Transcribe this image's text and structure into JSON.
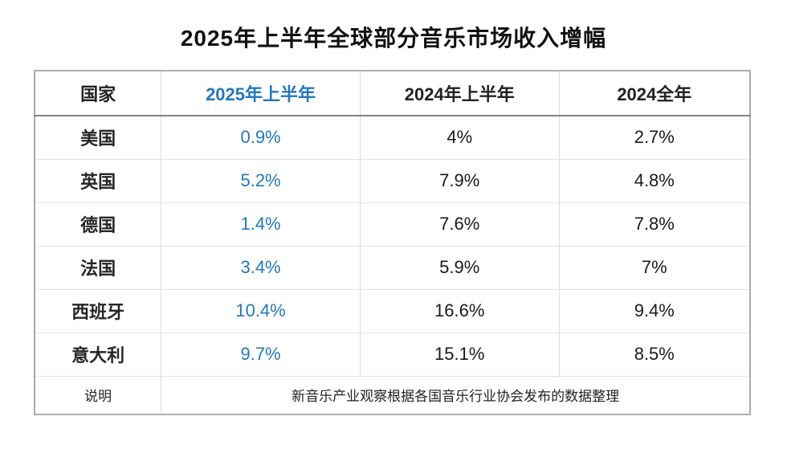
{
  "title": "2025年上半年全球部分音乐市场收入增幅",
  "table": {
    "header": {
      "country": "国家",
      "h1_2025": "2025年上半年",
      "h1_2024": "2024年上半年",
      "full_2024": "2024全年"
    },
    "rows": [
      {
        "country": "美国",
        "h1_2025": "0.9%",
        "h1_2024": "4%",
        "full_2024": "2.7%"
      },
      {
        "country": "英国",
        "h1_2025": "5.2%",
        "h1_2024": "7.9%",
        "full_2024": "4.8%"
      },
      {
        "country": "德国",
        "h1_2025": "1.4%",
        "h1_2024": "7.6%",
        "full_2024": "7.8%"
      },
      {
        "country": "法国",
        "h1_2025": "3.4%",
        "h1_2024": "5.9%",
        "full_2024": "7%"
      },
      {
        "country": "西班牙",
        "h1_2025": "10.4%",
        "h1_2024": "16.6%",
        "full_2024": "9.4%"
      },
      {
        "country": "意大利",
        "h1_2025": "9.7%",
        "h1_2024": "15.1%",
        "full_2024": "8.5%"
      }
    ],
    "footer": {
      "label": "说明",
      "note": "新音乐产业观察根据各国音乐行业协会发布的数据整理"
    }
  },
  "colors": {
    "accent_blue": "#2378bc",
    "text": "#1a1a1a",
    "background": "#ffffff",
    "border_outer": "#ababab",
    "border_header_bottom": "#848484",
    "border_column": "#dcdcdc",
    "border_row": "#e3e3e3"
  },
  "chart_data": {
    "type": "table",
    "title": "2025年上半年全球部分音乐市场收入增幅",
    "columns": [
      "国家",
      "2025年上半年",
      "2024年上半年",
      "2024全年"
    ],
    "rows": [
      [
        "美国",
        "0.9%",
        "4%",
        "2.7%"
      ],
      [
        "英国",
        "5.2%",
        "7.9%",
        "4.8%"
      ],
      [
        "德国",
        "1.4%",
        "7.6%",
        "7.8%"
      ],
      [
        "法国",
        "3.4%",
        "5.9%",
        "7%"
      ],
      [
        "西班牙",
        "10.4%",
        "16.6%",
        "9.4%"
      ],
      [
        "意大利",
        "9.7%",
        "15.1%",
        "8.5%"
      ]
    ],
    "series": [
      {
        "name": "2025年上半年",
        "values": [
          0.9,
          5.2,
          1.4,
          3.4,
          10.4,
          9.7
        ]
      },
      {
        "name": "2024年上半年",
        "values": [
          4,
          7.9,
          7.6,
          5.9,
          16.6,
          15.1
        ]
      },
      {
        "name": "2024全年",
        "values": [
          2.7,
          4.8,
          7.8,
          7,
          9.4,
          8.5
        ]
      }
    ],
    "categories": [
      "美国",
      "英国",
      "德国",
      "法国",
      "西班牙",
      "意大利"
    ],
    "note": "新音乐产业观察根据各国音乐行业协会发布的数据整理",
    "highlight_column": "2025年上半年"
  }
}
